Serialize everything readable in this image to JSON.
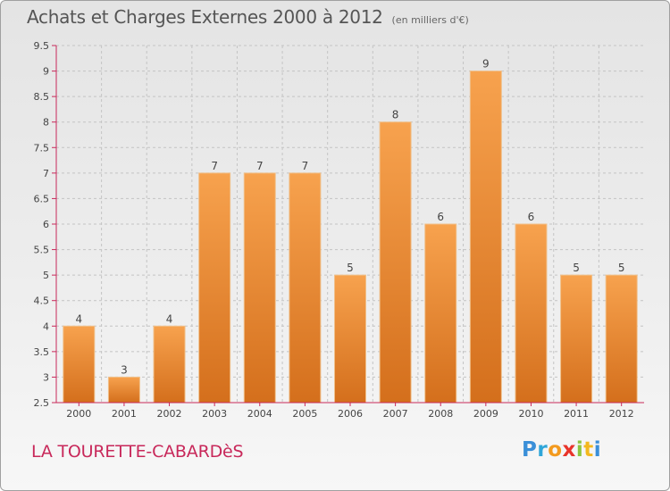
{
  "title": "Achats et Charges Externes 2000 à 2012",
  "subtitle": "(en milliers d'€)",
  "location": "LA TOURETTE-CABARDèS",
  "logo": {
    "letters": [
      "P",
      "r",
      "o",
      "x",
      "i",
      "t",
      "i"
    ],
    "colors": [
      "#3a8fd8",
      "#2fa6d9",
      "#f39a1e",
      "#e8342a",
      "#8cc63f",
      "#f3b81e",
      "#3a8fd8"
    ]
  },
  "colors": {
    "bar_top": "#f7a24e",
    "bar_bottom": "#d46f1c",
    "axis": "#c8285a",
    "title": "#555555"
  },
  "chart_data": {
    "type": "bar",
    "categories": [
      "2000",
      "2001",
      "2002",
      "2003",
      "2004",
      "2005",
      "2006",
      "2007",
      "2008",
      "2009",
      "2010",
      "2011",
      "2012"
    ],
    "values": [
      4,
      3,
      4,
      7,
      7,
      7,
      5,
      8,
      6,
      9,
      6,
      5,
      5
    ],
    "data_labels": [
      "4",
      "3",
      "4",
      "7",
      "7",
      "7",
      "5",
      "8",
      "6",
      "9",
      "6",
      "5",
      "5"
    ],
    "yticks": [
      "2.5",
      "3",
      "3.5",
      "4",
      "4.5",
      "5",
      "5.5",
      "6",
      "6.5",
      "7",
      "7.5",
      "8",
      "8.5",
      "9",
      "9.5"
    ],
    "ylim": [
      2.5,
      9.5
    ],
    "grid": true
  }
}
